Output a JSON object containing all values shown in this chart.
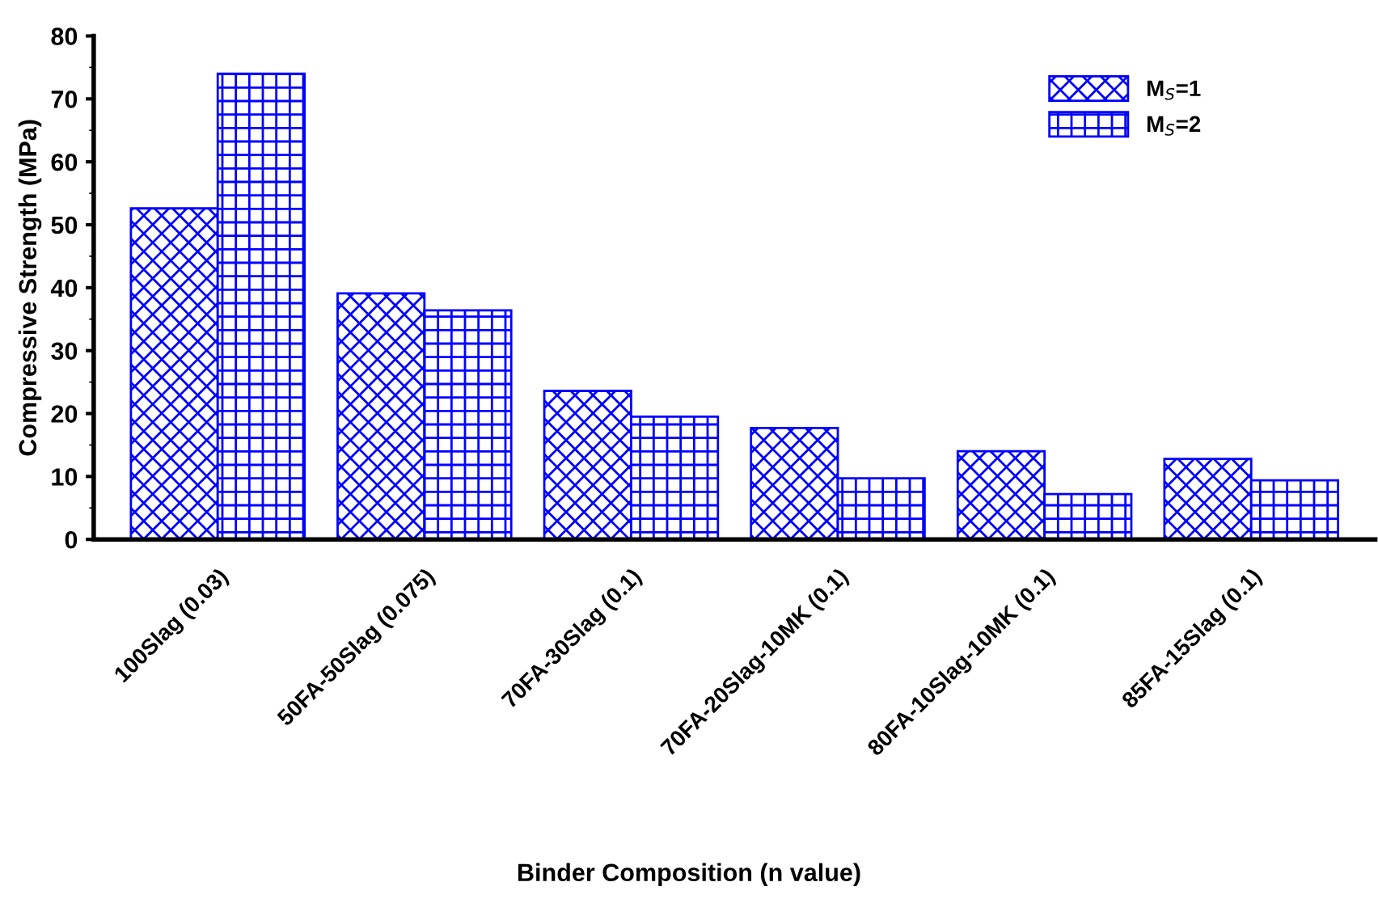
{
  "chart_data": {
    "type": "bar",
    "xlabel": "Binder Composition (n value)",
    "ylabel": "Compressive Strength (MPa)",
    "categories": [
      "100Slag (0.03)",
      "50FA-50Slag (0.075)",
      "70FA-30Slag (0.1)",
      "70FA-20Slag-10MK (0.1)",
      "80FA-10Slag-10MK (0.1)",
      "85FA-15Slag (0.1)"
    ],
    "series": [
      {
        "name": "M$_{S}$=1",
        "color": "#0000ff",
        "values": [
          52.6,
          39.1,
          23.6,
          17.7,
          14.0,
          12.8
        ]
      },
      {
        "name": "M$_{S}$=2",
        "color": "#0000ff",
        "values": [
          74.0,
          36.4,
          19.5,
          9.7,
          7.2,
          9.4
        ]
      }
    ],
    "ylim": [
      0,
      80
    ],
    "yticks": [
      0,
      10,
      20,
      30,
      40,
      50,
      60,
      70,
      80
    ],
    "grid": false,
    "legend": "top right"
  }
}
